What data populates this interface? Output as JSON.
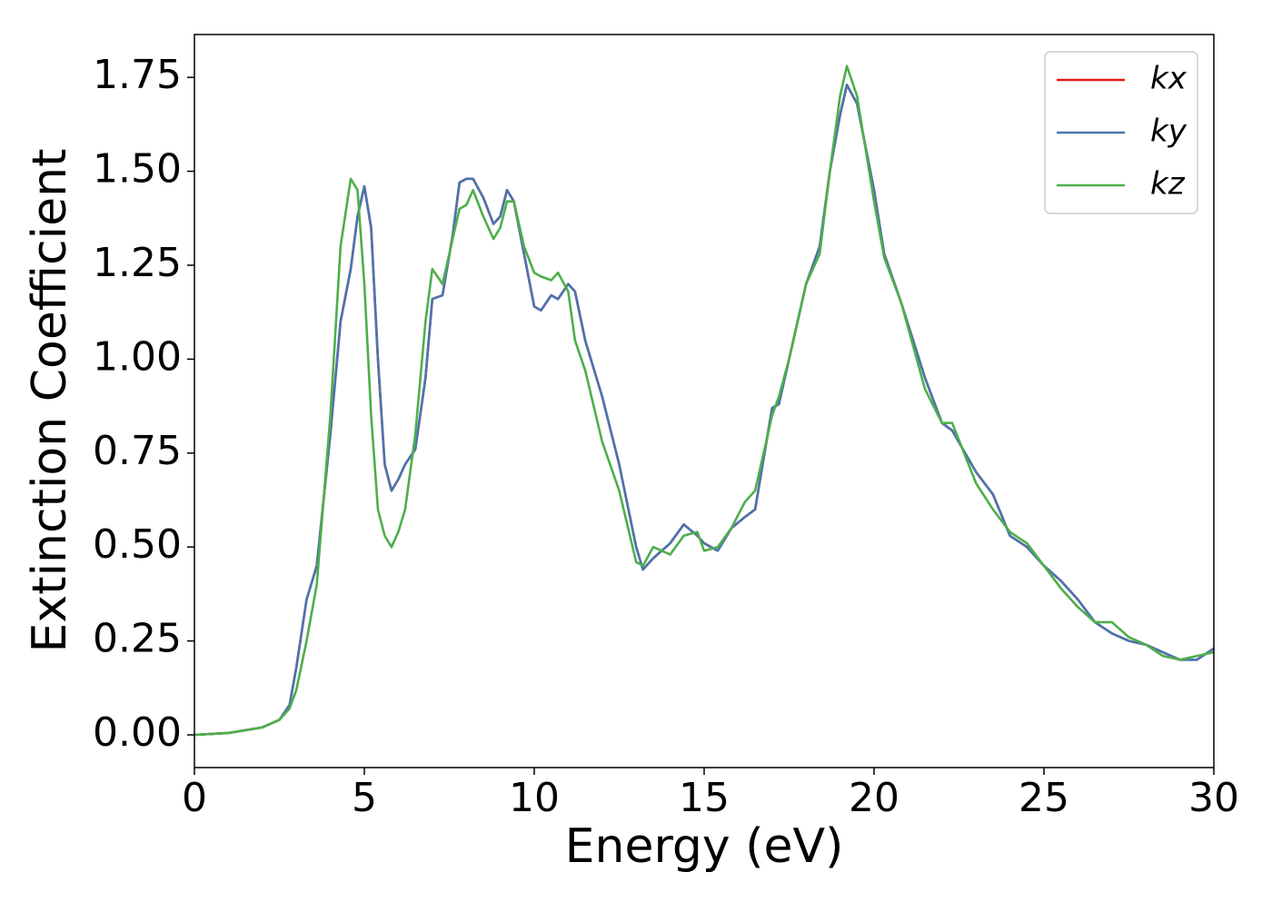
{
  "chart_data": {
    "type": "line",
    "x_label": "Energy (eV)",
    "y_label": "Extinction Coefficient",
    "xlim": [
      0,
      30
    ],
    "ylim": [
      -0.087,
      1.864
    ],
    "xticks": [
      0,
      5,
      10,
      15,
      20,
      25,
      30
    ],
    "yticks": [
      {
        "value": 0,
        "label": "0.00"
      },
      {
        "value": 0.25,
        "label": "0.25"
      },
      {
        "value": 0.5,
        "label": "0.50"
      },
      {
        "value": 0.75,
        "label": "0.75"
      },
      {
        "value": 1,
        "label": "1.00"
      },
      {
        "value": 1.25,
        "label": "1.25"
      },
      {
        "value": 1.5,
        "label": "1.50"
      },
      {
        "value": 1.75,
        "label": "1.75"
      }
    ],
    "grid": false,
    "legend": "upper right",
    "x": [
      0,
      1,
      2,
      2.5,
      2.8,
      3,
      3.3,
      3.6,
      4,
      4.3,
      4.6,
      4.8,
      5,
      5.2,
      5.4,
      5.6,
      5.8,
      6,
      6.2,
      6.5,
      6.8,
      7,
      7.3,
      7.6,
      7.8,
      8,
      8.2,
      8.5,
      8.8,
      9,
      9.2,
      9.4,
      9.7,
      10,
      10.2,
      10.5,
      10.7,
      11,
      11.2,
      11.5,
      12,
      12.5,
      13,
      13.2,
      13.5,
      14,
      14.4,
      14.8,
      15,
      15.4,
      15.8,
      16.2,
      16.5,
      17,
      17.2,
      17.5,
      18,
      18.4,
      18.7,
      19,
      19.2,
      19.5,
      20,
      20.3,
      20.8,
      21.5,
      22,
      22.3,
      23,
      23.5,
      24,
      24.5,
      25,
      25.5,
      26,
      26.5,
      27,
      27.5,
      28,
      28.5,
      29,
      29.5,
      30
    ],
    "series": [
      {
        "name": "kx",
        "color": "#e41a1c",
        "values": [
          0,
          0.005,
          0.02,
          0.04,
          0.08,
          0.18,
          0.36,
          0.45,
          0.8,
          1.1,
          1.24,
          1.38,
          1.46,
          1.35,
          1.0,
          0.72,
          0.65,
          0.68,
          0.72,
          0.76,
          0.95,
          1.16,
          1.17,
          1.33,
          1.47,
          1.48,
          1.48,
          1.43,
          1.36,
          1.38,
          1.45,
          1.42,
          1.28,
          1.14,
          1.13,
          1.17,
          1.16,
          1.2,
          1.18,
          1.05,
          0.9,
          0.72,
          0.5,
          0.44,
          0.47,
          0.51,
          0.56,
          0.53,
          0.51,
          0.49,
          0.55,
          0.58,
          0.6,
          0.87,
          0.88,
          1.0,
          1.2,
          1.3,
          1.5,
          1.65,
          1.73,
          1.68,
          1.45,
          1.28,
          1.15,
          0.95,
          0.83,
          0.81,
          0.7,
          0.64,
          0.53,
          0.5,
          0.45,
          0.41,
          0.36,
          0.3,
          0.27,
          0.25,
          0.24,
          0.22,
          0.2,
          0.2,
          0.23
        ]
      },
      {
        "name": "ky",
        "color": "#4a74b0",
        "values": [
          0,
          0.005,
          0.02,
          0.04,
          0.08,
          0.18,
          0.36,
          0.45,
          0.8,
          1.1,
          1.24,
          1.38,
          1.46,
          1.35,
          1.0,
          0.72,
          0.65,
          0.68,
          0.72,
          0.76,
          0.95,
          1.16,
          1.17,
          1.33,
          1.47,
          1.48,
          1.48,
          1.43,
          1.36,
          1.38,
          1.45,
          1.42,
          1.28,
          1.14,
          1.13,
          1.17,
          1.16,
          1.2,
          1.18,
          1.05,
          0.9,
          0.72,
          0.5,
          0.44,
          0.47,
          0.51,
          0.56,
          0.53,
          0.51,
          0.49,
          0.55,
          0.58,
          0.6,
          0.87,
          0.88,
          1.0,
          1.2,
          1.3,
          1.5,
          1.65,
          1.73,
          1.68,
          1.45,
          1.28,
          1.15,
          0.95,
          0.83,
          0.81,
          0.7,
          0.64,
          0.53,
          0.5,
          0.45,
          0.41,
          0.36,
          0.3,
          0.27,
          0.25,
          0.24,
          0.22,
          0.2,
          0.2,
          0.23
        ]
      },
      {
        "name": "kz",
        "color": "#4daf4a",
        "values": [
          0,
          0.005,
          0.02,
          0.04,
          0.07,
          0.12,
          0.25,
          0.4,
          0.85,
          1.3,
          1.48,
          1.45,
          1.2,
          0.85,
          0.6,
          0.53,
          0.5,
          0.54,
          0.6,
          0.8,
          1.1,
          1.24,
          1.2,
          1.32,
          1.4,
          1.41,
          1.45,
          1.38,
          1.32,
          1.35,
          1.42,
          1.42,
          1.3,
          1.23,
          1.22,
          1.21,
          1.23,
          1.18,
          1.05,
          0.97,
          0.78,
          0.65,
          0.46,
          0.45,
          0.5,
          0.48,
          0.53,
          0.54,
          0.49,
          0.5,
          0.55,
          0.62,
          0.65,
          0.85,
          0.9,
          1.0,
          1.2,
          1.28,
          1.5,
          1.7,
          1.78,
          1.7,
          1.42,
          1.27,
          1.15,
          0.92,
          0.83,
          0.83,
          0.67,
          0.6,
          0.54,
          0.51,
          0.45,
          0.39,
          0.34,
          0.3,
          0.3,
          0.26,
          0.24,
          0.21,
          0.2,
          0.21,
          0.22
        ]
      }
    ]
  }
}
